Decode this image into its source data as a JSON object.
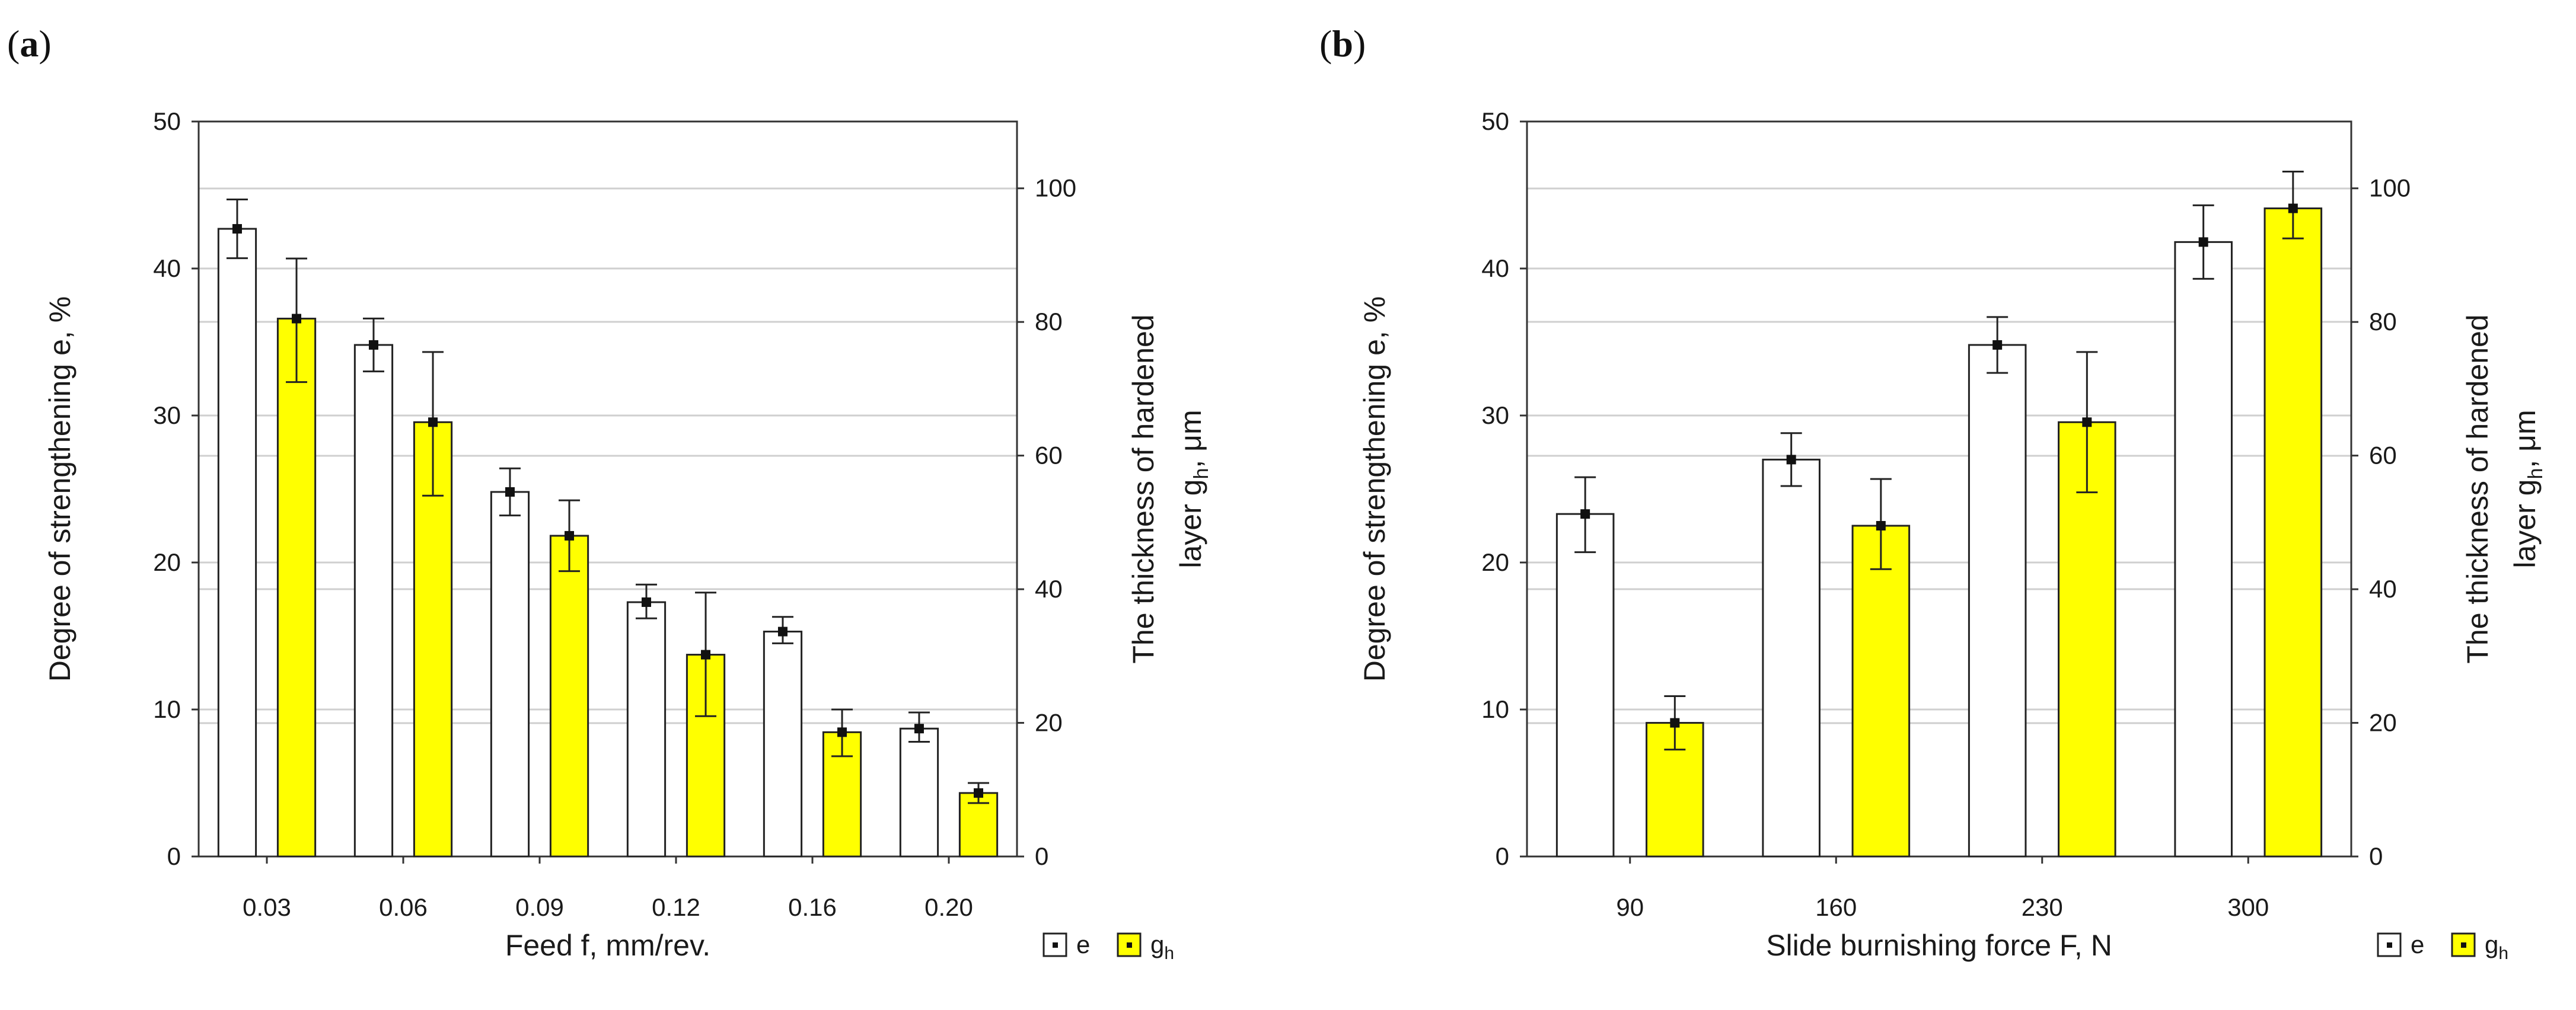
{
  "chart_data": [
    {
      "panel": "(a)",
      "panel_letter": "a",
      "type": "bar",
      "xlabel": "Feed f, mm/rev.",
      "ylabel": "Degree of strengthening e, %",
      "y2label": "The thickness of hardened layer g_h, μm",
      "y2label_line1": "The thickness of hardened",
      "y2label_line2": "layer g",
      "y2label_sub": "h",
      "y2label_tail": ", μm",
      "ylim": [
        0,
        50
      ],
      "y2lim": [
        0,
        110
      ],
      "yticks": [
        0,
        10,
        20,
        30,
        40,
        50
      ],
      "y2ticks": [
        0,
        20,
        40,
        60,
        80,
        100
      ],
      "categories": [
        "0.03",
        "0.06",
        "0.09",
        "0.12",
        "0.16",
        "0.20"
      ],
      "series": [
        {
          "name": "e",
          "axis": "left",
          "color": "#ffffff",
          "values": [
            42.7,
            34.8,
            24.8,
            17.3,
            15.3,
            8.7
          ],
          "err_low": [
            40.7,
            33.0,
            23.2,
            16.2,
            14.5,
            7.8
          ],
          "err_high": [
            44.7,
            36.6,
            26.4,
            18.5,
            16.3,
            9.8
          ]
        },
        {
          "name": "g_h",
          "axis": "right",
          "color": "#ffff00",
          "values": [
            80.5,
            65.0,
            48.0,
            30.2,
            18.6,
            9.5
          ],
          "err_low": [
            71.0,
            54.0,
            42.7,
            21.0,
            15.0,
            8.0
          ],
          "err_high": [
            89.5,
            75.5,
            53.3,
            39.5,
            22.0,
            11.0
          ]
        }
      ],
      "legend": {
        "e_label": "e",
        "g_label": "g",
        "g_sub": "h"
      }
    },
    {
      "panel": "(b)",
      "panel_letter": "b",
      "type": "bar",
      "xlabel": "Slide burnishing force F, N",
      "ylabel": "Degree of strengthening e, %",
      "y2label": "The thickness of hardened layer g_h, μm",
      "y2label_line1": "The thickness of hardened",
      "y2label_line2": "layer g",
      "y2label_sub": "h",
      "y2label_tail": ", μm",
      "ylim": [
        0,
        50
      ],
      "y2lim": [
        0,
        110
      ],
      "yticks": [
        0,
        10,
        20,
        30,
        40,
        50
      ],
      "y2ticks": [
        0,
        20,
        40,
        60,
        80,
        100
      ],
      "categories": [
        "90",
        "160",
        "230",
        "300"
      ],
      "series": [
        {
          "name": "e",
          "axis": "left",
          "color": "#ffffff",
          "values": [
            23.3,
            27.0,
            34.8,
            41.8
          ],
          "err_low": [
            20.7,
            25.2,
            32.9,
            39.3
          ],
          "err_high": [
            25.8,
            28.8,
            36.7,
            44.3
          ]
        },
        {
          "name": "g_h",
          "axis": "right",
          "color": "#ffff00",
          "values": [
            20.0,
            49.5,
            65.0,
            97.0
          ],
          "err_low": [
            16.0,
            43.0,
            54.5,
            92.5
          ],
          "err_high": [
            24.0,
            56.5,
            75.5,
            102.5
          ]
        }
      ],
      "legend": {
        "e_label": "e",
        "g_label": "g",
        "g_sub": "h"
      }
    }
  ]
}
